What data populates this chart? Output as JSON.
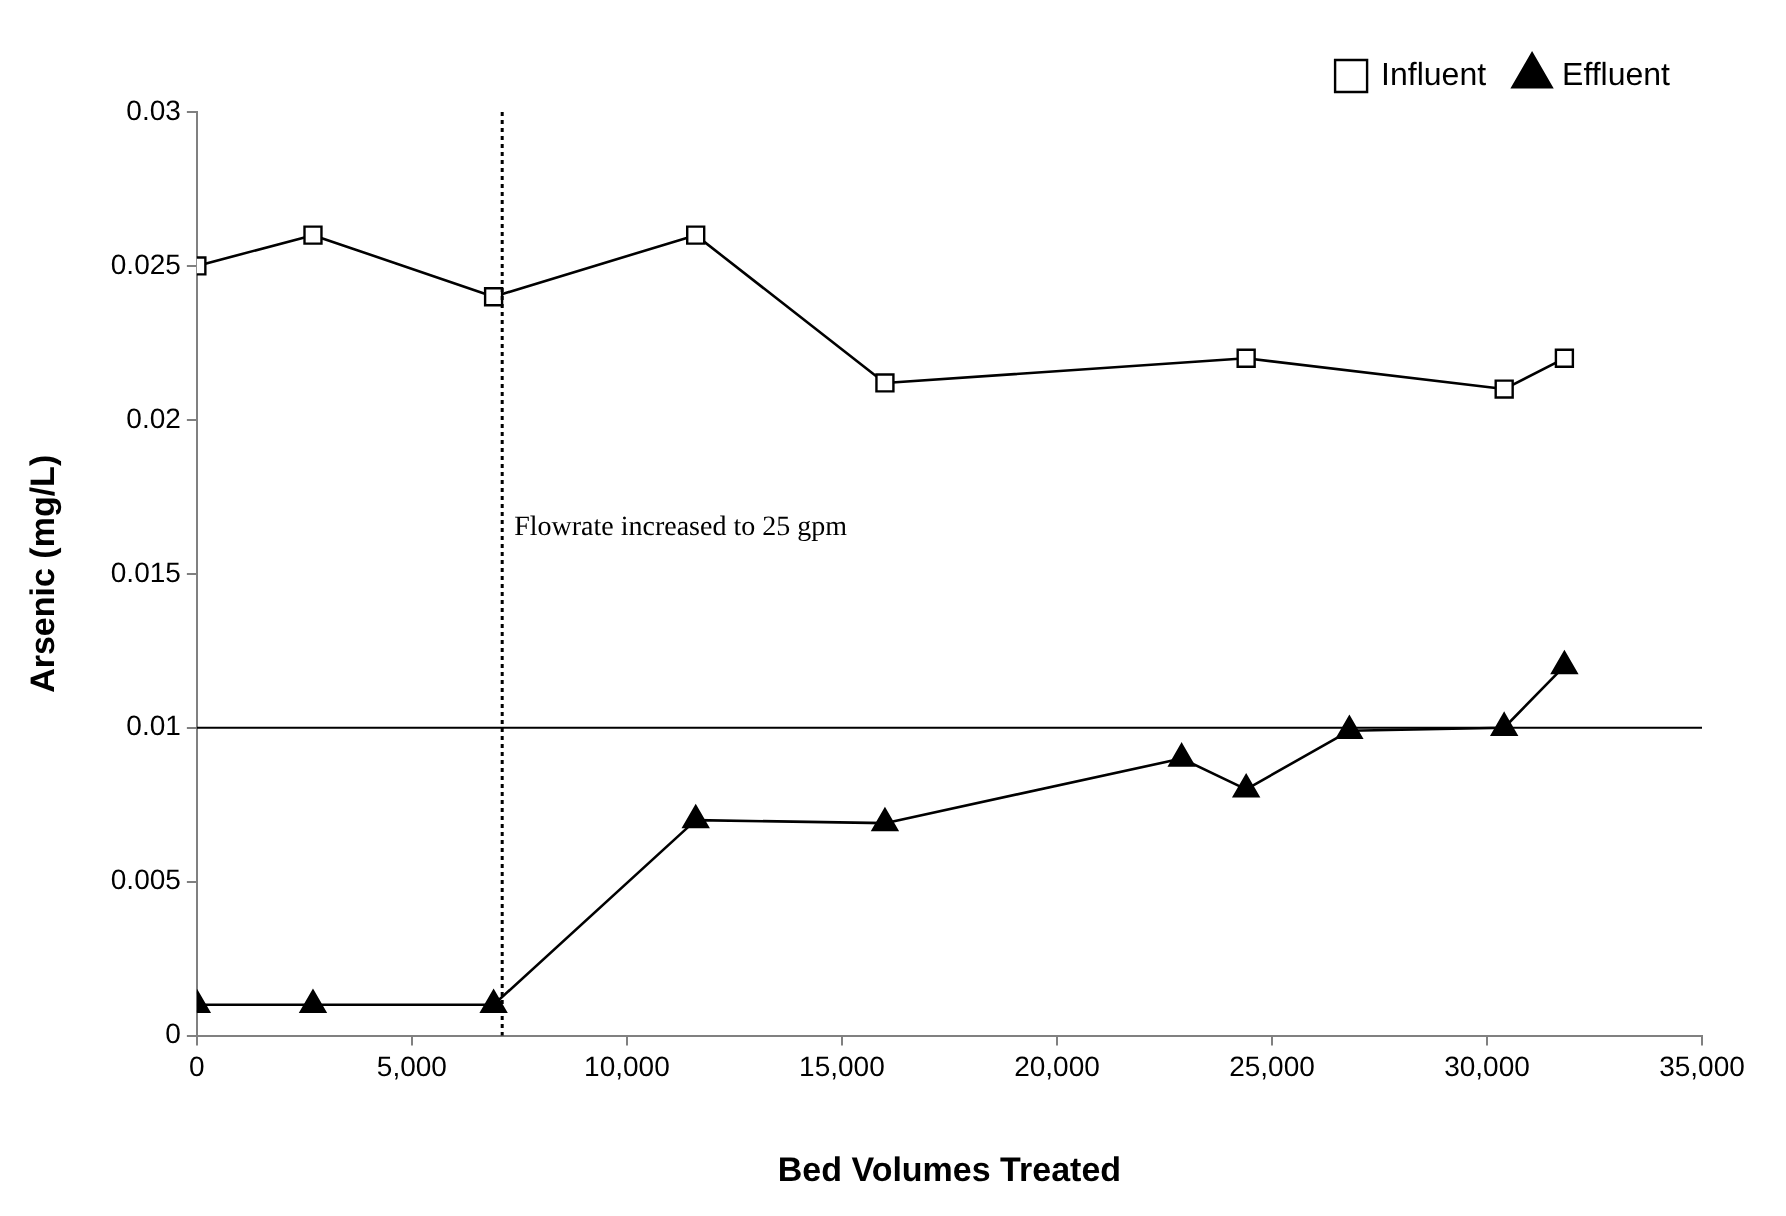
{
  "chart_data": {
    "type": "line",
    "xlabel": "Bed Volumes Treated",
    "ylabel": "Arsenic (mg/L)",
    "xlim": [
      0,
      35000
    ],
    "xticks": [
      0,
      {
        "value": 5000,
        "label": "5,000"
      },
      {
        "value": 10000,
        "label": "10,000"
      },
      {
        "value": 15000,
        "label": "15,000"
      },
      {
        "value": 20000,
        "label": "20,000"
      },
      {
        "value": 25000,
        "label": "25,000"
      },
      {
        "value": 30000,
        "label": "30,000"
      },
      {
        "value": 35000,
        "label": "35,000"
      }
    ],
    "ylim": [
      0,
      0.03
    ],
    "yticks": [
      0,
      0.005,
      0.01,
      0.015,
      0.02,
      0.025,
      0.03
    ],
    "grid": false,
    "legend": "top right",
    "line_style": "solid",
    "series": [
      {
        "name": "Influent",
        "color": "#000000",
        "marker": "square",
        "x": [
          0,
          2700,
          6900,
          11600,
          16000,
          24400,
          30400,
          31800
        ],
        "values": [
          0.025,
          0.026,
          0.024,
          0.026,
          0.0212,
          0.022,
          0.021,
          0.022
        ]
      },
      {
        "name": "Effluent",
        "color": "#000000",
        "marker": "triangle",
        "x": [
          0,
          2700,
          6900,
          11600,
          16000,
          22900,
          24400,
          26800,
          30400,
          31800
        ],
        "values": [
          0.001,
          0.001,
          0.001,
          0.007,
          0.0069,
          0.009,
          0.008,
          0.0099,
          0.01,
          0.012
        ]
      }
    ],
    "ref_lines": [
      {
        "axis": "x",
        "value": 7100,
        "label": "Flowrate increased to 25 gpm",
        "line_style": "dotted"
      },
      {
        "axis": "y",
        "value": 0.01,
        "line_style": "solid"
      }
    ]
  }
}
